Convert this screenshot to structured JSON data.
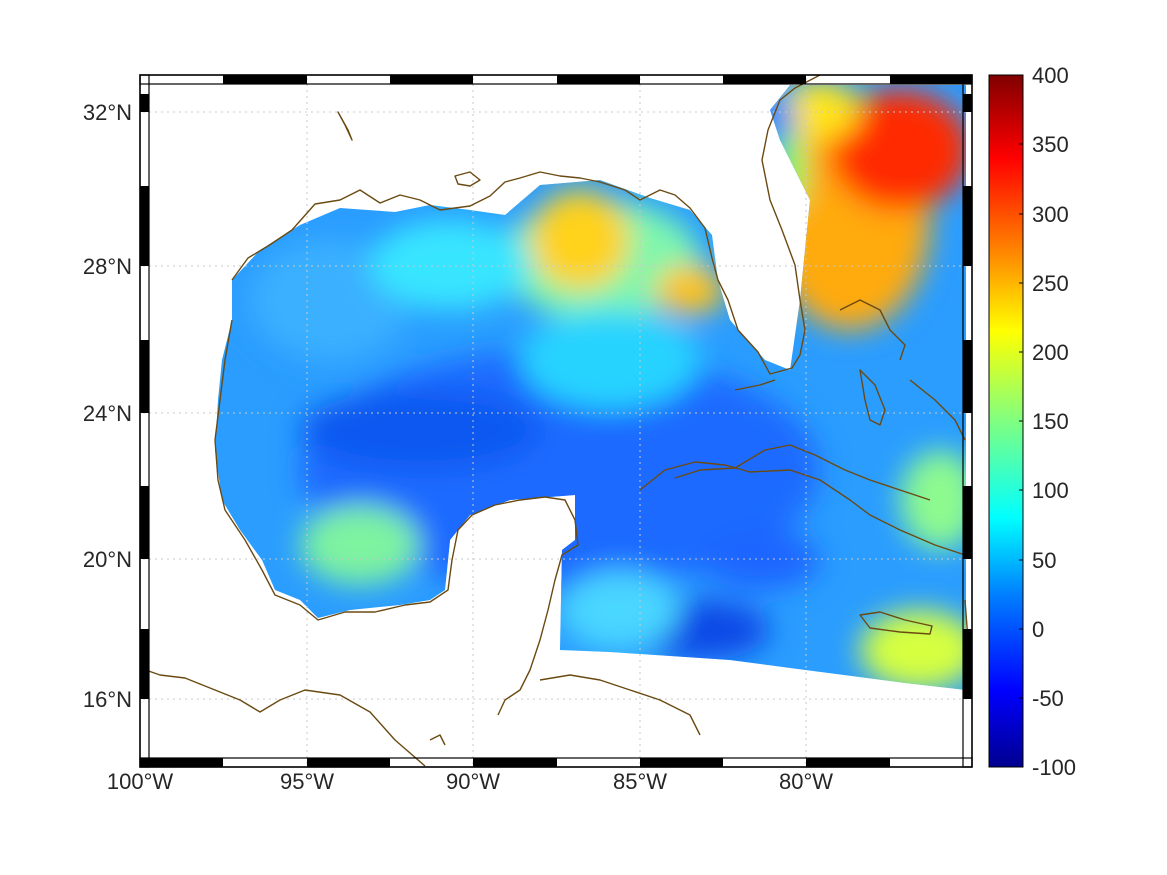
{
  "map": {
    "lon_range": [
      -100,
      -75
    ],
    "lat_range": [
      14.2,
      33
    ],
    "lat_ticks": [
      {
        "value": 32,
        "label": "32°N"
      },
      {
        "value": 28,
        "label": "28°N"
      },
      {
        "value": 24,
        "label": "24°N"
      },
      {
        "value": 20,
        "label": "20°N"
      },
      {
        "value": 16,
        "label": "16°N"
      }
    ],
    "lon_ticks": [
      {
        "value": -100,
        "label": "100°W"
      },
      {
        "value": -95,
        "label": "95°W"
      },
      {
        "value": -90,
        "label": "90°W"
      },
      {
        "value": -85,
        "label": "85°W"
      },
      {
        "value": -80,
        "label": "80°W"
      }
    ],
    "grid": true,
    "frame": "black-white checkered border",
    "coastline_color": "#6b4a12"
  },
  "colorbar": {
    "colormap": "jet",
    "range": [
      -100,
      400
    ],
    "ticks": [
      "400",
      "350",
      "300",
      "250",
      "200",
      "150",
      "100",
      "50",
      "0",
      "-50",
      "-100"
    ],
    "colors": [
      "#00008f",
      "#0000ff",
      "#0080ff",
      "#00ffff",
      "#80ff80",
      "#ffff00",
      "#ff8000",
      "#ff0000",
      "#800000"
    ]
  }
}
